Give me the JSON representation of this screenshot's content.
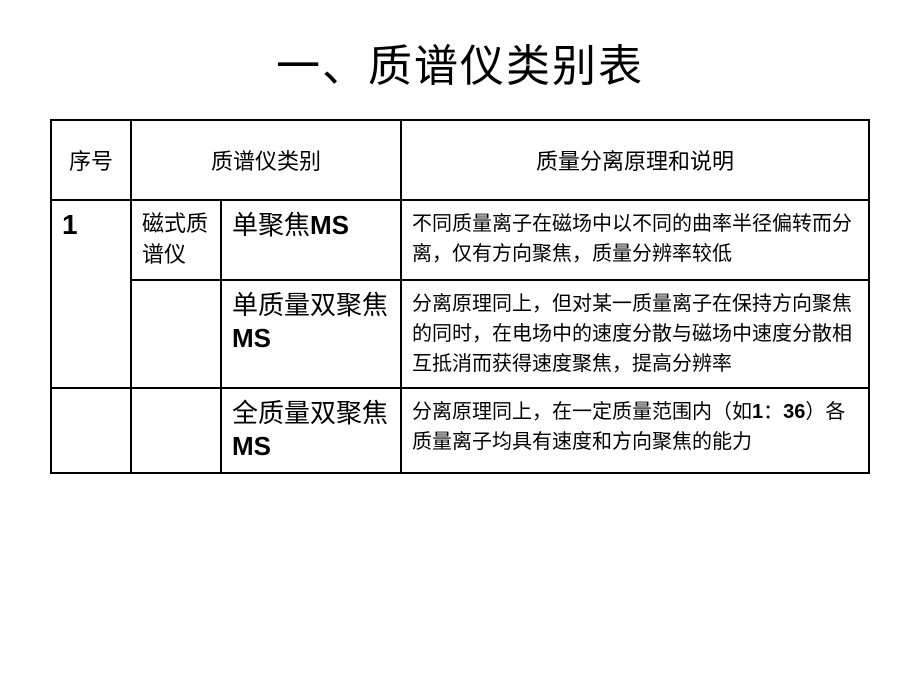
{
  "title": "一、质谱仪类别表",
  "headers": {
    "seq": "序号",
    "category": "质谱仪类别",
    "description": "质量分离原理和说明"
  },
  "seq_number": "1",
  "category_name": "磁式质谱仪",
  "rows": [
    {
      "type_prefix": "单聚焦",
      "type_suffix": "MS",
      "description": "不同质量离子在磁场中以不同的曲率半径偏转而分离，仅有方向聚焦，质量分辨率较低"
    },
    {
      "type_prefix": "单质量双聚焦",
      "type_suffix": "MS",
      "description": "分离原理同上，但对某一质量离子在保持方向聚焦的同时，在电场中的速度分散与磁场中速度分散相互抵消而获得速度聚焦，提高分辨率"
    },
    {
      "type_prefix": "全质量双聚焦",
      "type_suffix": "MS",
      "desc_part1": "分离原理同上，在一定质量范围内（如",
      "desc_num1": "1",
      "desc_colon": "：",
      "desc_num2": "36",
      "desc_part2": "）各质量离子均具有速度和方向聚焦的能力"
    }
  ]
}
